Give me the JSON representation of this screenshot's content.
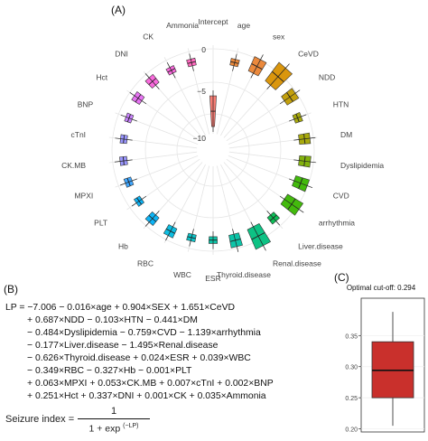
{
  "panel_labels": {
    "a": "(A)",
    "b": "(B)",
    "c": "(C)"
  },
  "formula": {
    "lines": [
      "LP = −7.006 − 0.016×age + 0.904×SEX + 1.651×CeVD",
      "+ 0.687×NDD − 0.103×HTN − 0.441×DM",
      "− 0.484×Dyslipidemia − 0.759×CVD − 1.139×arrhythmia",
      "− 0.177×Liver.disease − 1.495×Renal.disease",
      "− 0.626×Thyroid.disease + 0.024×ESR + 0.039×WBC",
      "− 0.349×RBC − 0.327×Hb − 0.001×PLT",
      "+ 0.063×MPXI + 0.053×CK.MB + 0.007×cTnI + 0.002×BNP",
      "+ 0.251×Hct + 0.337×DNI + 0.001×CK + 0.035×Ammonia"
    ],
    "seizure_lhs": "Seizure index =",
    "seizure_num": "1",
    "seizure_den": "1 + exp",
    "seizure_exp": "(−LP)"
  },
  "chart_data": [
    {
      "type": "bar",
      "subtype": "circular-boxplot",
      "radial_ticks": [
        "0",
        "−5",
        "−10"
      ],
      "categories": [
        "Intercept",
        "age",
        "sex",
        "CeVD",
        "NDD",
        "HTN",
        "DM",
        "Dyslipidemia",
        "CVD",
        "arrhythmia",
        "Liver.disease",
        "Renal.disease",
        "Thyroid.disease",
        "ESR",
        "WBC",
        "RBC",
        "Hb",
        "PLT",
        "MPXI",
        "CK.MB",
        "cTnI",
        "BNP",
        "Hct",
        "DNI",
        "CK",
        "Ammonia"
      ],
      "series": [
        {
          "values": [
            -7.006,
            -0.016,
            0.904,
            1.651,
            0.687,
            -0.103,
            -0.441,
            -0.484,
            -0.759,
            -1.139,
            -0.177,
            -1.495,
            -0.626,
            0.024,
            0.039,
            -0.349,
            -0.327,
            -0.001,
            0.063,
            0.053,
            0.007,
            0.002,
            0.251,
            0.337,
            0.001,
            0.035
          ]
        }
      ],
      "colors": [
        "#f8766d",
        "#ea8331",
        "#d89000",
        "#c09b00",
        "#a3a500",
        "#7cae00",
        "#39b600",
        "#00bb4e",
        "#00bf7d",
        "#00c1a3",
        "#00bfc4",
        "#00bae0",
        "#00b0f6",
        "#35a2ff",
        "#9590ff",
        "#c77cff",
        "#e76bf3",
        "#fa62db",
        "#ff62bc"
      ],
      "grid": true,
      "legend": "none"
    },
    {
      "type": "bar",
      "subtype": "boxplot",
      "title": "Optimal cut-off: 0.294",
      "y_ticks": [
        "0.20",
        "0.25",
        "0.30",
        "0.35"
      ],
      "ylim": [
        0.195,
        0.41
      ],
      "box": {
        "min": 0.205,
        "q1": 0.25,
        "median": 0.294,
        "q3": 0.34,
        "max": 0.388
      },
      "fill": "#c9302c"
    }
  ]
}
